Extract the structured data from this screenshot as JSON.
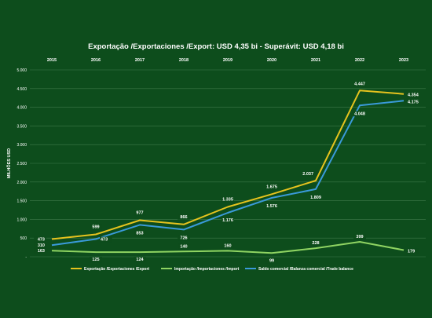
{
  "chart_data": {
    "type": "line",
    "title": "Exportação /Exportaciones /Export: USD 4,35 bi - Superávit: USD 4,18 bi",
    "ylabel": "MILHÕES USD",
    "ylim": [
      0,
      5000
    ],
    "y_ticks": [
      "-",
      "500",
      "1.000",
      "1.500",
      "2.000",
      "2.500",
      "3.000",
      "3.500",
      "4.000",
      "4.500",
      "5.000"
    ],
    "grid": true,
    "legend_position": "bottom",
    "categories": [
      "2015",
      "2016",
      "2017",
      "2018",
      "2019",
      "2020",
      "2021",
      "2022",
      "2023"
    ],
    "series": [
      {
        "name": "Exportação /Exportaciones /Export",
        "color": "#e6c31e",
        "values": [
          473,
          599,
          977,
          866,
          1335,
          1675,
          2037,
          4447,
          4354
        ],
        "labels": [
          "473",
          "599",
          "977",
          "866",
          "1.335",
          "1.675",
          "2.037",
          "4.447",
          "4.354"
        ]
      },
      {
        "name": "Importação /Importaciones /Import",
        "color": "#8fd462",
        "values": [
          163,
          125,
          124,
          140,
          160,
          99,
          228,
          399,
          179
        ],
        "labels": [
          "163",
          "125",
          "124",
          "140",
          "160",
          "99",
          "228",
          "399",
          "179"
        ]
      },
      {
        "name": "Saldo comercial /Balanza comercial /Trade balance",
        "color": "#3a9ad9",
        "values": [
          310,
          473,
          853,
          726,
          1176,
          1576,
          1809,
          4048,
          4175
        ],
        "labels": [
          "310",
          "473",
          "853",
          "726",
          "1.176",
          "1.576",
          "1.809",
          "4.048",
          "4.175"
        ]
      }
    ]
  }
}
